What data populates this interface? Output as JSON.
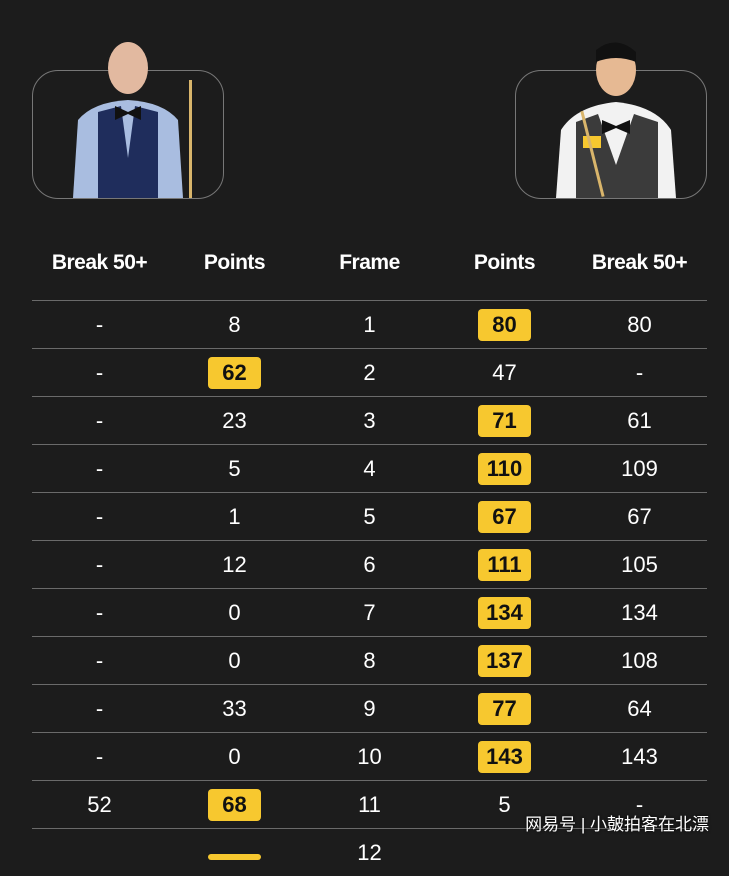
{
  "players": {
    "left": {
      "photo_icon": "player-photo"
    },
    "right": {
      "photo_icon": "player-photo"
    }
  },
  "headers": [
    "Break 50+",
    "Points",
    "Frame",
    "Points",
    "Break 50+"
  ],
  "highlight_color": "#f7c82f",
  "rows": [
    {
      "lb": "-",
      "lp": "8",
      "f": "1",
      "rp": "80",
      "rb": "80",
      "win": "right"
    },
    {
      "lb": "-",
      "lp": "62",
      "f": "2",
      "rp": "47",
      "rb": "-",
      "win": "left"
    },
    {
      "lb": "-",
      "lp": "23",
      "f": "3",
      "rp": "71",
      "rb": "61",
      "win": "right"
    },
    {
      "lb": "-",
      "lp": "5",
      "f": "4",
      "rp": "110",
      "rb": "109",
      "win": "right"
    },
    {
      "lb": "-",
      "lp": "1",
      "f": "5",
      "rp": "67",
      "rb": "67",
      "win": "right"
    },
    {
      "lb": "-",
      "lp": "12",
      "f": "6",
      "rp": "111",
      "rb": "105",
      "win": "right"
    },
    {
      "lb": "-",
      "lp": "0",
      "f": "7",
      "rp": "134",
      "rb": "134",
      "win": "right"
    },
    {
      "lb": "-",
      "lp": "0",
      "f": "8",
      "rp": "137",
      "rb": "108",
      "win": "right"
    },
    {
      "lb": "-",
      "lp": "33",
      "f": "9",
      "rp": "77",
      "rb": "64",
      "win": "right"
    },
    {
      "lb": "-",
      "lp": "0",
      "f": "10",
      "rp": "143",
      "rb": "143",
      "win": "right"
    },
    {
      "lb": "52",
      "lp": "68",
      "f": "11",
      "rp": "5",
      "rb": "-",
      "win": "left"
    },
    {
      "lb": "",
      "lp": "",
      "f": "12",
      "rp": "",
      "rb": "",
      "win": "left"
    }
  ],
  "watermark": "网易号 | 小皷拍客在北漂"
}
